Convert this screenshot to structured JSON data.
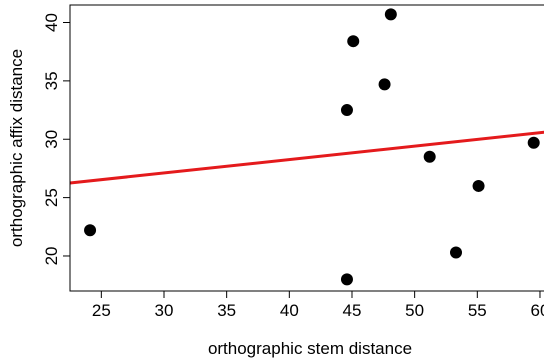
{
  "chart_data": {
    "type": "scatter",
    "title": "",
    "xlabel": "orthographic stem distance",
    "ylabel": "orthographic affix distance",
    "xlim": [
      22.5,
      60.8
    ],
    "ylim": [
      17.0,
      41.5
    ],
    "x_ticks": [
      25,
      30,
      35,
      40,
      45,
      50,
      55,
      60
    ],
    "y_ticks": [
      20,
      25,
      30,
      35,
      40
    ],
    "grid": false,
    "legend": "none",
    "point_color": "#000000",
    "line_color": "#e41a1c",
    "series": [
      {
        "points": [
          {
            "x": 24.1,
            "y": 22.2
          },
          {
            "x": 44.6,
            "y": 18.0
          },
          {
            "x": 44.6,
            "y": 32.5
          },
          {
            "x": 45.1,
            "y": 38.4
          },
          {
            "x": 47.6,
            "y": 34.7
          },
          {
            "x": 48.1,
            "y": 40.7
          },
          {
            "x": 51.2,
            "y": 28.5
          },
          {
            "x": 53.3,
            "y": 20.3
          },
          {
            "x": 55.1,
            "y": 26.0
          },
          {
            "x": 59.5,
            "y": 29.7
          }
        ]
      }
    ],
    "fit_line": {
      "x": [
        22.5,
        60.8
      ],
      "y": [
        26.25,
        30.65
      ]
    }
  }
}
